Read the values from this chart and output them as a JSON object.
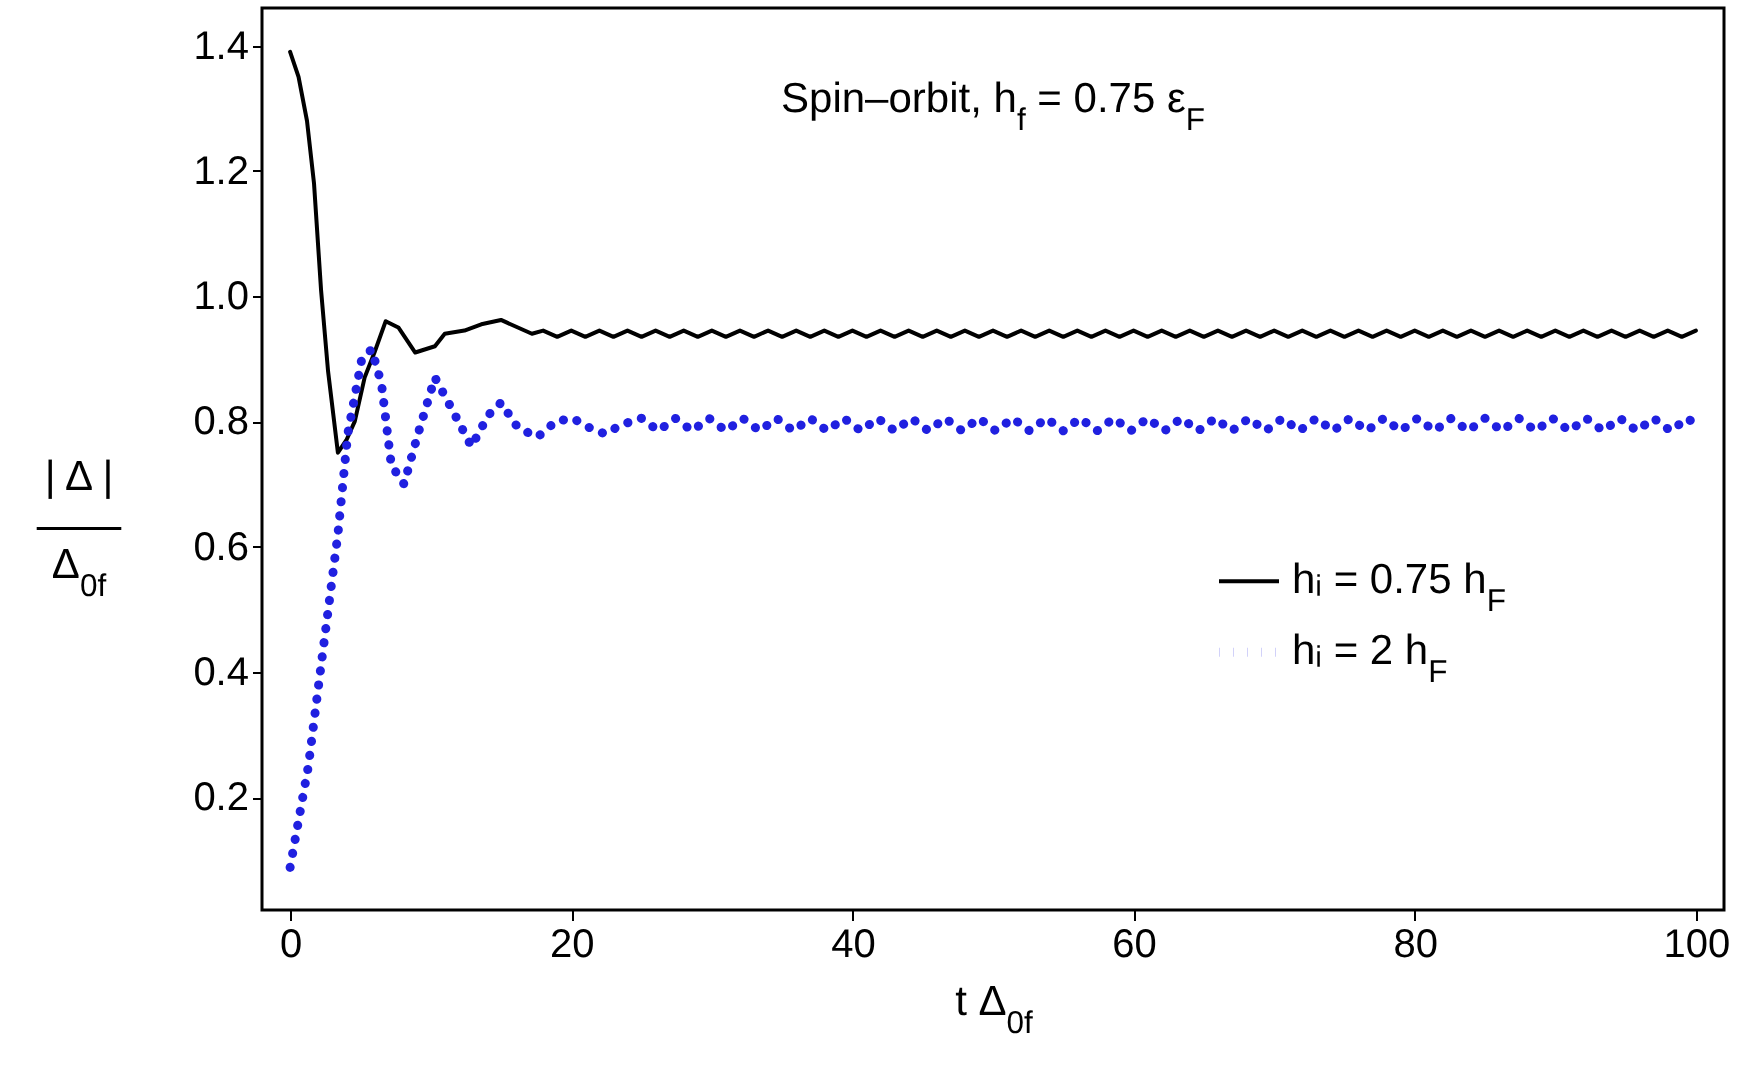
{
  "chart_data": {
    "type": "line",
    "title": "Spin–orbit, h$_{f}$ = 0.75 ε$_{F}$",
    "xlabel": "t Δ$_{0f}$",
    "ylabel": "| Δ |\nΔ$_{0f}$",
    "xlim": [
      -2,
      102
    ],
    "xticks": [
      0,
      20,
      40,
      60,
      80,
      100
    ],
    "ylim": [
      0.02,
      1.46
    ],
    "yticks": [
      0.2,
      0.4,
      0.6,
      0.8,
      {
        "value": 1,
        "label": "1.0"
      },
      1.2,
      1.4
    ],
    "legend": "right",
    "series": [
      {
        "name": "hᵢ = 0.75 h$_{F}$",
        "color": "#000000",
        "line_style": "solid",
        "x": [
          0,
          0.6,
          1.2,
          1.7,
          2.2,
          2.7,
          3.4,
          4,
          4.6,
          5.3,
          6,
          6.8,
          7.7,
          8.9,
          10.3,
          11,
          12.4,
          13.6,
          15,
          16.2,
          17.2,
          18,
          19,
          20,
          21,
          22,
          23,
          24,
          25,
          26,
          27,
          28,
          29,
          30,
          31,
          32,
          33,
          34,
          35,
          36,
          37,
          38,
          39,
          40,
          41,
          42,
          43,
          44,
          45,
          46,
          47,
          48,
          49,
          50,
          51,
          52,
          53,
          54,
          55,
          56,
          57,
          58,
          59,
          60,
          61,
          62,
          63,
          64,
          65,
          66,
          67,
          68,
          69,
          70,
          71,
          72,
          73,
          74,
          75,
          76,
          77,
          78,
          79,
          80,
          81,
          82,
          83,
          84,
          85,
          86,
          87,
          88,
          89,
          90,
          91,
          92,
          93,
          94,
          95,
          96,
          97,
          98,
          99,
          100
        ],
        "values": [
          1.39,
          1.35,
          1.28,
          1.18,
          1.01,
          0.88,
          0.75,
          0.77,
          0.8,
          0.87,
          0.91,
          0.96,
          0.95,
          0.91,
          0.92,
          0.94,
          0.945,
          0.955,
          0.962,
          0.95,
          0.94,
          0.945,
          0.935,
          0.945,
          0.935,
          0.945,
          0.935,
          0.945,
          0.935,
          0.945,
          0.935,
          0.945,
          0.935,
          0.945,
          0.935,
          0.945,
          0.935,
          0.945,
          0.935,
          0.945,
          0.935,
          0.945,
          0.935,
          0.945,
          0.935,
          0.945,
          0.935,
          0.945,
          0.935,
          0.945,
          0.935,
          0.945,
          0.935,
          0.945,
          0.935,
          0.945,
          0.935,
          0.945,
          0.935,
          0.945,
          0.935,
          0.945,
          0.935,
          0.945,
          0.935,
          0.945,
          0.935,
          0.945,
          0.935,
          0.945,
          0.935,
          0.945,
          0.935,
          0.945,
          0.935,
          0.945,
          0.935,
          0.945,
          0.935,
          0.945,
          0.935,
          0.945,
          0.935,
          0.945,
          0.935,
          0.945,
          0.935,
          0.945,
          0.935,
          0.945,
          0.935,
          0.945,
          0.935,
          0.945,
          0.935,
          0.945,
          0.935,
          0.945,
          0.935,
          0.945,
          0.935,
          0.945,
          0.935,
          0.945
        ]
      },
      {
        "name": "hᵢ = 2 h$_{F}$",
        "color": "#2020e0",
        "line_style": "dotted",
        "x": [
          0,
          1.3,
          2.2,
          3.4,
          4.1,
          5.1,
          5.8,
          6.5,
          7.2,
          8.1,
          9.1,
          10.3,
          11.5,
          12.9,
          14.1,
          15,
          16.2,
          17.6,
          18.9,
          20.1,
          21.3,
          22.4,
          23.6,
          25,
          26.2,
          27.4,
          28.6,
          29.8,
          31,
          32.2,
          33.4,
          34.6,
          35.8,
          37,
          38.2,
          39.4,
          40.6,
          41.8,
          43,
          44.2,
          45.4,
          46.6,
          47.8,
          49,
          50.2,
          51.4,
          52.6,
          53.8,
          55,
          56.2,
          57.4,
          58.6,
          59.8,
          61,
          62.2,
          63.4,
          64.6,
          65.8,
          67,
          68.2,
          69.4,
          70.6,
          71.8,
          73,
          74.2,
          75.4,
          76.6,
          77.8,
          79,
          80.2,
          81.4,
          82.6,
          83.8,
          85,
          86.2,
          87.4,
          88.6,
          89.8,
          91,
          92.2,
          93.4,
          94.6,
          95.8,
          97,
          98.2,
          99.4,
          100
        ],
        "values": [
          0.088,
          0.25,
          0.41,
          0.62,
          0.78,
          0.9,
          0.915,
          0.86,
          0.73,
          0.7,
          0.78,
          0.87,
          0.82,
          0.76,
          0.81,
          0.83,
          0.79,
          0.775,
          0.8,
          0.805,
          0.79,
          0.78,
          0.795,
          0.805,
          0.785,
          0.805,
          0.785,
          0.805,
          0.785,
          0.805,
          0.785,
          0.805,
          0.785,
          0.805,
          0.785,
          0.805,
          0.785,
          0.805,
          0.785,
          0.805,
          0.785,
          0.805,
          0.785,
          0.805,
          0.785,
          0.805,
          0.785,
          0.805,
          0.785,
          0.805,
          0.785,
          0.805,
          0.785,
          0.805,
          0.785,
          0.805,
          0.785,
          0.805,
          0.785,
          0.805,
          0.785,
          0.805,
          0.785,
          0.805,
          0.785,
          0.805,
          0.785,
          0.805,
          0.785,
          0.805,
          0.785,
          0.805,
          0.785,
          0.805,
          0.785,
          0.805,
          0.785,
          0.805,
          0.785,
          0.805,
          0.785,
          0.805,
          0.785,
          0.805,
          0.785,
          0.805,
          0.795
        ]
      }
    ]
  }
}
